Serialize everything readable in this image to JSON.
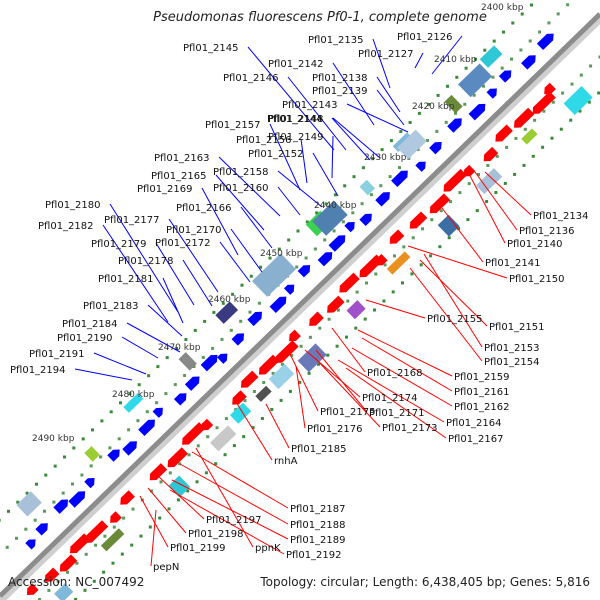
{
  "map": {
    "title": "Pseudomonas fluorescens Pf0-1, complete genome",
    "accession": "Accession: NC_007492",
    "topology": "Topology: circular; Length: 6,438,405 bp; Genes: 5,816",
    "kbp_ticks": [
      "2400 kbp",
      "2410 kbp",
      "2420 kbp",
      "2430 kbp",
      "2440 kbp",
      "2450 kbp",
      "2460 kbp",
      "2470 kbp",
      "2480 kbp",
      "2490 kbp"
    ],
    "forward_genes": [
      "Pfl01_2126",
      "Pfl01_2127",
      "Pfl01_2135",
      "Pfl01_2138",
      "Pfl01_2139",
      "Pfl01_2142",
      "Pfl01_2143",
      "Pfl01_2144",
      "Pfl01_2145",
      "Pfl01_2146",
      "Pfl01_2148",
      "Pfl01_2149",
      "Pfl01_2152",
      "Pfl01_2156",
      "Pfl01_2157",
      "Pfl01_2158",
      "Pfl01_2160",
      "Pfl01_2163",
      "Pfl01_2165",
      "Pfl01_2166",
      "Pfl01_2169",
      "Pfl01_2170",
      "Pfl01_2172",
      "Pfl01_2177",
      "Pfl01_2178",
      "Pfl01_2179",
      "Pfl01_2180",
      "Pfl01_2181",
      "Pfl01_2182",
      "Pfl01_2183",
      "Pfl01_2184",
      "Pfl01_2190",
      "Pfl01_2191",
      "Pfl01_2194"
    ],
    "reverse_genes": [
      "Pfl01_2134",
      "Pfl01_2136",
      "Pfl01_2140",
      "Pfl01_2141",
      "Pfl01_2150",
      "Pfl01_2151",
      "Pfl01_2153",
      "Pfl01_2154",
      "Pfl01_2155",
      "Pfl01_2159",
      "Pfl01_2161",
      "Pfl01_2162",
      "Pfl01_2164",
      "Pfl01_2167",
      "Pfl01_2168",
      "Pfl01_2171",
      "Pfl01_2173",
      "Pfl01_2174",
      "Pfl01_2175",
      "Pfl01_2176",
      "Pfl01_2185",
      "rnhA",
      "Pfl01_2187",
      "Pfl01_2188",
      "Pfl01_2189",
      "Pfl01_2192",
      "ppnK",
      "Pfl01_2197",
      "Pfl01_2198",
      "Pfl01_2199",
      "pepN"
    ],
    "colors": {
      "forward": "#0000ff",
      "reverse": "#ff0000",
      "backbone": "#888888",
      "tick_dot": "#3a8a3a"
    }
  }
}
